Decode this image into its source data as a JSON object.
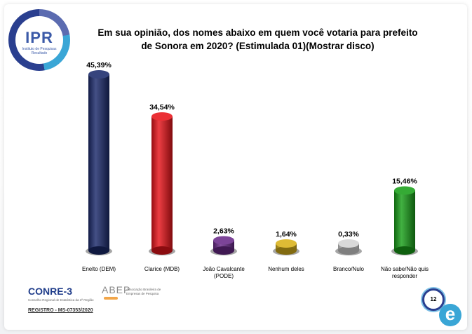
{
  "logo": {
    "text": "IPR",
    "subtitle": "Instituto de Pesquisas Resultado"
  },
  "title_line1": "Em sua opinião, dos nomes abaixo em quem você votaria para prefeito",
  "title_line2": "de Sonora em 2020? (Estimulada 01)(Mostrar disco)",
  "chart_data": {
    "type": "bar",
    "title": "Em sua opinião, dos nomes abaixo em quem você votaria para prefeito de Sonora em 2020? (Estimulada 01)(Mostrar disco)",
    "categories": [
      [
        "Enelto (DEM)"
      ],
      [
        "Clarice (MDB)"
      ],
      [
        "João Cavalcante",
        "(PODE)"
      ],
      [
        "Nenhum deles"
      ],
      [
        "Branco/Nulo"
      ],
      [
        "Não sabe/Não quis",
        "responder"
      ]
    ],
    "values": [
      45.39,
      34.54,
      2.63,
      1.64,
      0.33,
      15.46
    ],
    "value_labels": [
      "45,39%",
      "34,54%",
      "2,63%",
      "1,64%",
      "0,33%",
      "15,46%"
    ],
    "colors": [
      "#1b2a6b",
      "#e8141a",
      "#6a2a8a",
      "#d9b21a",
      "#d4d4d4",
      "#19a019"
    ],
    "ylim": [
      0,
      45.39
    ],
    "xlabel": "",
    "ylabel": "",
    "grid": false
  },
  "footer": {
    "conre": "CONRE-3",
    "conre_sub": "Conselho Regional de Estatística da 3ª Região",
    "abep": "ABEP",
    "abep_sub": "Associação Brasileira de Empresas de Pesquisa",
    "registro": "REGISTRO - MS-07353/2020",
    "page": "12",
    "e_icon": "e"
  }
}
